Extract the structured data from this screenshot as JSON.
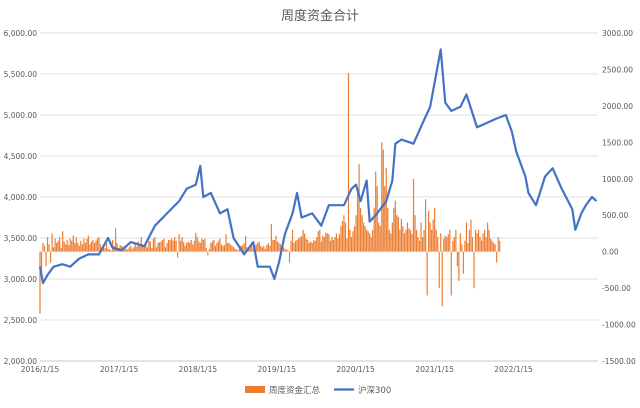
{
  "chart_data": {
    "type": "bar+line",
    "title": "周度资金合计",
    "x_tick_labels": [
      "2016/1/15",
      "2017/1/15",
      "2018/1/15",
      "2019/1/15",
      "2020/1/15",
      "2021/1/15",
      "2022/1/15"
    ],
    "left_axis": {
      "min": 2000,
      "max": 6000,
      "ticks": [
        "2,000.00",
        "2,500.00",
        "3,000.00",
        "3,500.00",
        "4,000.00",
        "4,500.00",
        "5,000.00",
        "5,500.00",
        "6,000.00"
      ]
    },
    "right_axis": {
      "min": -1500,
      "max": 3000,
      "ticks": [
        "-1500.00",
        "-1000.00",
        "-500.00",
        "0.00",
        "500.00",
        "1000.00",
        "1500.00",
        "2000.00",
        "2500.00",
        "3000.00"
      ]
    },
    "grid": true,
    "legend_position": "bottom",
    "series": [
      {
        "name": "周度资金汇总",
        "kind": "bar",
        "axis": "right",
        "color": "#ED7D31",
        "note": "weekly values (approximate), one per week from 2016/1/15",
        "x_start": "2016/1/15",
        "x_step_days": 7,
        "values": [
          -850,
          -300,
          120,
          80,
          -200,
          200,
          100,
          -150,
          250,
          60,
          180,
          120,
          150,
          200,
          50,
          280,
          140,
          100,
          160,
          90,
          180,
          150,
          220,
          120,
          200,
          120,
          80,
          150,
          100,
          180,
          120,
          180,
          220,
          100,
          140,
          160,
          120,
          150,
          180,
          200,
          100,
          60,
          80,
          50,
          120,
          40,
          30,
          20,
          160,
          80,
          320,
          120,
          50,
          90,
          80,
          70,
          60,
          40,
          30,
          60,
          80,
          40,
          60,
          120,
          70,
          140,
          100,
          200,
          90,
          70,
          120,
          60,
          150,
          140,
          50,
          180,
          200,
          60,
          120,
          130,
          140,
          160,
          180,
          60,
          120,
          160,
          160,
          180,
          150,
          200,
          150,
          -80,
          240,
          150,
          200,
          130,
          80,
          120,
          140,
          120,
          160,
          100,
          150,
          260,
          200,
          140,
          120,
          180,
          160,
          180,
          50,
          -50,
          40,
          120,
          140,
          160,
          80,
          120,
          150,
          180,
          100,
          80,
          90,
          240,
          120,
          120,
          100,
          80,
          60,
          40,
          30,
          20,
          50,
          80,
          90,
          120,
          220,
          60,
          30,
          80,
          120,
          40,
          80,
          100,
          120,
          140,
          80,
          60,
          80,
          40,
          90,
          120,
          80,
          380,
          160,
          160,
          220,
          140,
          120,
          100,
          80,
          60,
          40,
          30,
          20,
          -150,
          150,
          300,
          120,
          150,
          160,
          180,
          200,
          210,
          300,
          250,
          180,
          160,
          120,
          140,
          120,
          160,
          150,
          200,
          280,
          300,
          140,
          220,
          200,
          260,
          250,
          240,
          150,
          200,
          160,
          200,
          250,
          180,
          240,
          350,
          420,
          500,
          400,
          180,
          2450,
          300,
          200,
          280,
          350,
          500,
          800,
          1200,
          600,
          500,
          400,
          350,
          300,
          280,
          250,
          200,
          300,
          600,
          1100,
          900,
          400,
          350,
          1500,
          1400,
          900,
          1150,
          600,
          300,
          250,
          400,
          600,
          700,
          500,
          480,
          300,
          450,
          350,
          250,
          300,
          400,
          320,
          300,
          240,
          1000,
          500,
          300,
          200,
          150,
          400,
          200,
          300,
          720,
          -600,
          560,
          400,
          300,
          440,
          600,
          300,
          200,
          -500,
          250,
          -750,
          180,
          220,
          200,
          240,
          300,
          -600,
          150,
          200,
          300,
          -200,
          -400,
          250,
          100,
          -300,
          150,
          400,
          120,
          300,
          440,
          200,
          -500,
          300,
          250,
          300,
          200,
          150,
          250,
          300,
          200,
          400,
          300,
          180,
          150,
          120,
          100,
          -150,
          200,
          150
        ]
      },
      {
        "name": "沪深300",
        "kind": "line",
        "axis": "left",
        "color": "#4472C4",
        "note": "approximate index levels at anchor dates",
        "points": [
          [
            "2016/1/15",
            3150
          ],
          [
            "2016/1/29",
            2950
          ],
          [
            "2016/2/19",
            3050
          ],
          [
            "2016/3/18",
            3150
          ],
          [
            "2016/4/29",
            3180
          ],
          [
            "2016/6/3",
            3150
          ],
          [
            "2016/7/15",
            3250
          ],
          [
            "2016/8/26",
            3300
          ],
          [
            "2016/10/14",
            3300
          ],
          [
            "2016/11/25",
            3500
          ],
          [
            "2016/12/16",
            3380
          ],
          [
            "2017/1/27",
            3350
          ],
          [
            "2017/3/10",
            3450
          ],
          [
            "2017/5/12",
            3400
          ],
          [
            "2017/6/30",
            3650
          ],
          [
            "2017/8/25",
            3800
          ],
          [
            "2017/10/20",
            3950
          ],
          [
            "2017/11/24",
            4100
          ],
          [
            "2018/1/5",
            4150
          ],
          [
            "2018/1/26",
            4380
          ],
          [
            "2018/2/9",
            4000
          ],
          [
            "2018/3/16",
            4050
          ],
          [
            "2018/4/27",
            3800
          ],
          [
            "2018/6/1",
            3850
          ],
          [
            "2018/6/29",
            3500
          ],
          [
            "2018/8/17",
            3300
          ],
          [
            "2018/9/28",
            3450
          ],
          [
            "2018/10/19",
            3150
          ],
          [
            "2018/12/14",
            3150
          ],
          [
            "2019/1/4",
            3000
          ],
          [
            "2019/1/25",
            3200
          ],
          [
            "2019/2/22",
            3550
          ],
          [
            "2019/3/29",
            3800
          ],
          [
            "2019/4/19",
            4050
          ],
          [
            "2019/5/10",
            3750
          ],
          [
            "2019/6/28",
            3800
          ],
          [
            "2019/8/9",
            3650
          ],
          [
            "2019/9/13",
            3900
          ],
          [
            "2019/11/22",
            3900
          ],
          [
            "2019/12/27",
            4100
          ],
          [
            "2020/1/17",
            4150
          ],
          [
            "2020/2/7",
            3950
          ],
          [
            "2020/3/6",
            4200
          ],
          [
            "2020/3/20",
            3700
          ],
          [
            "2020/4/24",
            3800
          ],
          [
            "2020/6/5",
            3950
          ],
          [
            "2020/7/3",
            4200
          ],
          [
            "2020/7/17",
            4650
          ],
          [
            "2020/8/14",
            4700
          ],
          [
            "2020/10/9",
            4650
          ],
          [
            "2020/11/20",
            4900
          ],
          [
            "2020/12/25",
            5100
          ],
          [
            "2021/1/15",
            5400
          ],
          [
            "2021/2/12",
            5800
          ],
          [
            "2021/3/5",
            5150
          ],
          [
            "2021/4/2",
            5050
          ],
          [
            "2021/5/14",
            5100
          ],
          [
            "2021/6/11",
            5250
          ],
          [
            "2021/7/30",
            4850
          ],
          [
            "2021/9/10",
            4900
          ],
          [
            "2021/10/22",
            4950
          ],
          [
            "2021/12/10",
            5000
          ],
          [
            "2022/1/7",
            4800
          ],
          [
            "2022/1/28",
            4550
          ],
          [
            "2022/3/11",
            4250
          ],
          [
            "2022/3/25",
            4050
          ],
          [
            "2022/4/29",
            3900
          ],
          [
            "2022/6/10",
            4250
          ],
          [
            "2022/7/15",
            4350
          ],
          [
            "2022/8/26",
            4100
          ],
          [
            "2022/10/14",
            3850
          ],
          [
            "2022/10/28",
            3600
          ],
          [
            "2022/11/25",
            3800
          ],
          [
            "2022/12/16",
            3900
          ],
          [
            "2023/1/13",
            4000
          ],
          [
            "2023/2/3",
            3950
          ]
        ]
      }
    ]
  }
}
